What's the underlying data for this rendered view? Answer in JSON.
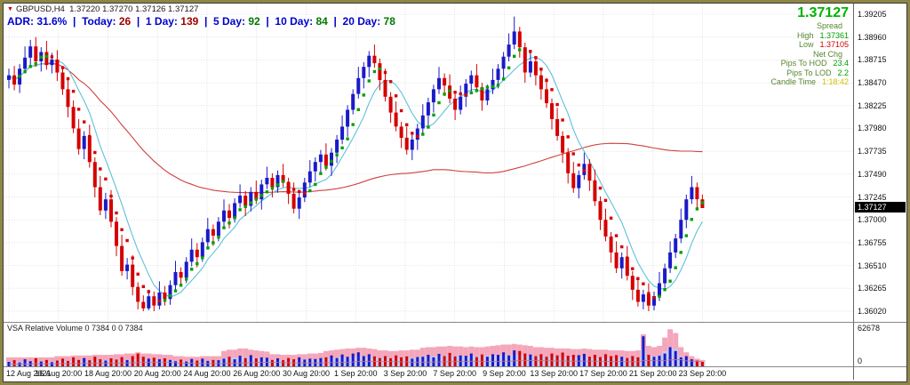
{
  "colors": {
    "frame": "#8e8645",
    "adr_blue": "#0000cc",
    "quote_label": "#57862e",
    "price_green": "#00b300"
  },
  "header": {
    "symbol_line": "GBPUSD,H4  1.37220 1.37270 1.37126 1.37127",
    "adr": {
      "lead_label": "ADR:",
      "lead_value": "31.6%",
      "separator": "|",
      "items": [
        {
          "label": "Today:",
          "value": "26",
          "value_color": "#a00000"
        },
        {
          "label": "1 Day:",
          "value": "139",
          "value_color": "#a00000"
        },
        {
          "label": "5 Day:",
          "value": "92",
          "value_color": "#007800"
        },
        {
          "label": "10 Day:",
          "value": "84",
          "value_color": "#007800"
        },
        {
          "label": "20 Day:",
          "value": "78",
          "value_color": "#007800"
        }
      ]
    }
  },
  "quote_panel": {
    "price": "1.37127",
    "rows": [
      {
        "label": "Spread",
        "value": "",
        "value_color": "#00a000"
      },
      {
        "label": "High",
        "value": "1.37361",
        "value_color": "#00a000"
      },
      {
        "label": "Low",
        "value": "1.37105",
        "value_color": "#d00000"
      },
      {
        "label": "Net Chg",
        "value": "",
        "value_color": "#00a000"
      },
      {
        "label": "Pips To HOD",
        "value": "23.4",
        "value_color": "#00a000"
      },
      {
        "label": "Pips To LOD",
        "value": "2.2",
        "value_color": "#00a000"
      },
      {
        "label": "Candle Time",
        "value": "1:18:42",
        "value_color": "#d6c200"
      }
    ]
  },
  "volume_pane": {
    "label": "VSA Relative Volume 0 7384 0 0 7384",
    "scale_top": "62678",
    "scale_bottom": "0"
  },
  "chart_data": {
    "type": "candlestick",
    "symbol": "GBPUSD",
    "timeframe": "H4",
    "y_range": [
      1.3602,
      1.39205
    ],
    "y_tick_labels": [
      "1.39205",
      "1.38960",
      "1.38715",
      "1.38470",
      "1.38225",
      "1.37980",
      "1.37735",
      "1.37490",
      "1.37245",
      "1.37000",
      "1.36755",
      "1.36510",
      "1.36265",
      "1.36020"
    ],
    "x_tick_labels": [
      "12 Aug 2021",
      "16 Aug 20:00",
      "18 Aug 20:00",
      "20 Aug 20:00",
      "24 Aug 20:00",
      "26 Aug 20:00",
      "30 Aug 20:00",
      "1 Sep 20:00",
      "3 Sep 20:00",
      "7 Sep 20:00",
      "9 Sep 20:00",
      "13 Sep 20:00",
      "17 Sep 20:00",
      "21 Sep 20:00",
      "23 Sep 20:00"
    ],
    "volume_scale_max": 62678,
    "overlays": {
      "dots_period": 5,
      "fast_period": 8,
      "slow_period": 80
    },
    "colors": {
      "up": "#1a1ac8",
      "down": "#d40000",
      "dots_up": "#00a000",
      "dots_down": "#d40000",
      "ma_fast": "#5ec1d8",
      "ma_slow": "#d04040",
      "band_pink": "#f4a7bb",
      "band_blue": "#c2cdf5",
      "vol_line": "#c87878"
    },
    "candles": [
      [
        1.385,
        1.3862,
        1.3841,
        1.3855
      ],
      [
        1.3855,
        1.3865,
        1.3839,
        1.3845
      ],
      [
        1.3845,
        1.3867,
        1.3836,
        1.3862
      ],
      [
        1.3862,
        1.3886,
        1.3857,
        1.3874
      ],
      [
        1.3874,
        1.3893,
        1.3865,
        1.3886
      ],
      [
        1.3886,
        1.3896,
        1.3864,
        1.387
      ],
      [
        1.387,
        1.3885,
        1.3859,
        1.388
      ],
      [
        1.388,
        1.3892,
        1.3861,
        1.3866
      ],
      [
        1.3866,
        1.3879,
        1.3857,
        1.3872
      ],
      [
        1.3872,
        1.3882,
        1.3849,
        1.3858
      ],
      [
        1.3858,
        1.3863,
        1.3834,
        1.384
      ],
      [
        1.384,
        1.3852,
        1.381,
        1.3821
      ],
      [
        1.3821,
        1.3828,
        1.3793,
        1.3798
      ],
      [
        1.3798,
        1.3808,
        1.377,
        1.3776
      ],
      [
        1.3776,
        1.3795,
        1.3765,
        1.379
      ],
      [
        1.379,
        1.3802,
        1.3756,
        1.3762
      ],
      [
        1.3762,
        1.3767,
        1.3724,
        1.3735
      ],
      [
        1.3735,
        1.3747,
        1.3705,
        1.371
      ],
      [
        1.371,
        1.3729,
        1.3701,
        1.3722
      ],
      [
        1.3722,
        1.3732,
        1.3692,
        1.3698
      ],
      [
        1.3698,
        1.3703,
        1.3661,
        1.3672
      ],
      [
        1.3672,
        1.3684,
        1.364,
        1.3645
      ],
      [
        1.3645,
        1.3659,
        1.3636,
        1.3652
      ],
      [
        1.3652,
        1.3662,
        1.3619,
        1.3628
      ],
      [
        1.3628,
        1.3633,
        1.3604,
        1.3612
      ],
      [
        1.3612,
        1.3619,
        1.3602,
        1.3605
      ],
      [
        1.3605,
        1.3625,
        1.3603,
        1.3618
      ],
      [
        1.3618,
        1.3623,
        1.3602,
        1.3608
      ],
      [
        1.3608,
        1.3634,
        1.3604,
        1.3622
      ],
      [
        1.3622,
        1.3629,
        1.3608,
        1.3615
      ],
      [
        1.3615,
        1.3635,
        1.3609,
        1.363
      ],
      [
        1.363,
        1.3656,
        1.3625,
        1.3644
      ],
      [
        1.3644,
        1.3649,
        1.3629,
        1.3638
      ],
      [
        1.3638,
        1.366,
        1.3632,
        1.3655
      ],
      [
        1.3655,
        1.368,
        1.365,
        1.3668
      ],
      [
        1.3668,
        1.3675,
        1.3649,
        1.366
      ],
      [
        1.366,
        1.3681,
        1.3655,
        1.3676
      ],
      [
        1.3676,
        1.3702,
        1.3671,
        1.369
      ],
      [
        1.369,
        1.3695,
        1.3672,
        1.3683
      ],
      [
        1.3683,
        1.3703,
        1.3677,
        1.3698
      ],
      [
        1.3698,
        1.3722,
        1.3693,
        1.371
      ],
      [
        1.371,
        1.3717,
        1.3691,
        1.3702
      ],
      [
        1.3702,
        1.3723,
        1.3697,
        1.3718
      ],
      [
        1.3718,
        1.3738,
        1.3713,
        1.3726
      ],
      [
        1.3726,
        1.3731,
        1.3704,
        1.3715
      ],
      [
        1.3715,
        1.3735,
        1.3709,
        1.373
      ],
      [
        1.373,
        1.3742,
        1.3717,
        1.3722
      ],
      [
        1.3722,
        1.3743,
        1.3711,
        1.3738
      ],
      [
        1.3738,
        1.3757,
        1.3733,
        1.3745
      ],
      [
        1.3745,
        1.375,
        1.3724,
        1.3735
      ],
      [
        1.3735,
        1.3753,
        1.3729,
        1.3748
      ],
      [
        1.3748,
        1.376,
        1.3735,
        1.374
      ],
      [
        1.374,
        1.3745,
        1.3717,
        1.3728
      ],
      [
        1.3728,
        1.374,
        1.3707,
        1.3712
      ],
      [
        1.3712,
        1.3729,
        1.3701,
        1.3724
      ],
      [
        1.3724,
        1.3745,
        1.3719,
        1.374
      ],
      [
        1.374,
        1.3764,
        1.3735,
        1.3752
      ],
      [
        1.3752,
        1.3767,
        1.3741,
        1.3762
      ],
      [
        1.3762,
        1.3775,
        1.3751,
        1.377
      ],
      [
        1.377,
        1.3782,
        1.3753,
        1.3758
      ],
      [
        1.3758,
        1.3777,
        1.3747,
        1.3772
      ],
      [
        1.3772,
        1.3791,
        1.3761,
        1.3786
      ],
      [
        1.3786,
        1.3812,
        1.3781,
        1.38
      ],
      [
        1.38,
        1.3823,
        1.3789,
        1.3818
      ],
      [
        1.3818,
        1.384,
        1.3813,
        1.3835
      ],
      [
        1.3835,
        1.3864,
        1.383,
        1.3852
      ],
      [
        1.3852,
        1.3869,
        1.3841,
        1.3864
      ],
      [
        1.3864,
        1.3881,
        1.3853,
        1.3876
      ],
      [
        1.3876,
        1.3888,
        1.3863,
        1.3868
      ],
      [
        1.3868,
        1.3873,
        1.3839,
        1.385
      ],
      [
        1.385,
        1.3862,
        1.3827,
        1.3832
      ],
      [
        1.3832,
        1.3837,
        1.3804,
        1.3815
      ],
      [
        1.3815,
        1.3827,
        1.3795,
        1.38
      ],
      [
        1.38,
        1.3805,
        1.3777,
        1.3788
      ],
      [
        1.3788,
        1.38,
        1.377,
        1.3775
      ],
      [
        1.3775,
        1.3791,
        1.3764,
        1.3786
      ],
      [
        1.3786,
        1.3803,
        1.3775,
        1.3798
      ],
      [
        1.3798,
        1.3824,
        1.3793,
        1.3812
      ],
      [
        1.3812,
        1.3831,
        1.3801,
        1.3826
      ],
      [
        1.3826,
        1.3845,
        1.3815,
        1.384
      ],
      [
        1.384,
        1.3864,
        1.3835,
        1.3852
      ],
      [
        1.3852,
        1.3857,
        1.3833,
        1.3844
      ],
      [
        1.3844,
        1.3856,
        1.3825,
        1.383
      ],
      [
        1.383,
        1.3835,
        1.3807,
        1.3818
      ],
      [
        1.3818,
        1.3844,
        1.3813,
        1.3832
      ],
      [
        1.3832,
        1.3851,
        1.3821,
        1.3846
      ],
      [
        1.3846,
        1.386,
        1.3835,
        1.3855
      ],
      [
        1.3855,
        1.3867,
        1.3837,
        1.3842
      ],
      [
        1.3842,
        1.3847,
        1.3817,
        1.3828
      ],
      [
        1.3828,
        1.3845,
        1.3823,
        1.384
      ],
      [
        1.384,
        1.3862,
        1.3835,
        1.385
      ],
      [
        1.385,
        1.3867,
        1.3841,
        1.3862
      ],
      [
        1.3862,
        1.388,
        1.3851,
        1.3875
      ],
      [
        1.3875,
        1.39,
        1.387,
        1.3888
      ],
      [
        1.3888,
        1.3918,
        1.3883,
        1.3902
      ],
      [
        1.3902,
        1.3907,
        1.3874,
        1.3885
      ],
      [
        1.3885,
        1.389,
        1.3847,
        1.3858
      ],
      [
        1.3858,
        1.3882,
        1.3853,
        1.387
      ],
      [
        1.387,
        1.3875,
        1.3844,
        1.3855
      ],
      [
        1.3855,
        1.386,
        1.3829,
        1.384
      ],
      [
        1.384,
        1.3852,
        1.382,
        1.3825
      ],
      [
        1.3825,
        1.383,
        1.3797,
        1.3808
      ],
      [
        1.3808,
        1.382,
        1.3785,
        1.379
      ],
      [
        1.379,
        1.3795,
        1.3761,
        1.3772
      ],
      [
        1.3772,
        1.3777,
        1.3739,
        1.375
      ],
      [
        1.375,
        1.3762,
        1.3729,
        1.3734
      ],
      [
        1.3734,
        1.3753,
        1.3723,
        1.3748
      ],
      [
        1.3748,
        1.3772,
        1.3743,
        1.376
      ],
      [
        1.376,
        1.3765,
        1.3731,
        1.3742
      ],
      [
        1.3742,
        1.3754,
        1.3715,
        1.372
      ],
      [
        1.372,
        1.3725,
        1.3689,
        1.37
      ],
      [
        1.37,
        1.3712,
        1.3677,
        1.3682
      ],
      [
        1.3682,
        1.3687,
        1.3654,
        1.3665
      ],
      [
        1.3665,
        1.3677,
        1.3643,
        1.3648
      ],
      [
        1.3648,
        1.3665,
        1.3637,
        1.366
      ],
      [
        1.366,
        1.3672,
        1.3635,
        1.364
      ],
      [
        1.364,
        1.3645,
        1.3614,
        1.3625
      ],
      [
        1.3625,
        1.3637,
        1.3607,
        1.3612
      ],
      [
        1.3612,
        1.3625,
        1.3604,
        1.362
      ],
      [
        1.362,
        1.3632,
        1.3602,
        1.3608
      ],
      [
        1.3608,
        1.3623,
        1.3603,
        1.3618
      ],
      [
        1.3618,
        1.3644,
        1.3613,
        1.3632
      ],
      [
        1.3632,
        1.3653,
        1.3627,
        1.3648
      ],
      [
        1.3648,
        1.3677,
        1.3643,
        1.3665
      ],
      [
        1.3665,
        1.3685,
        1.3659,
        1.368
      ],
      [
        1.368,
        1.3712,
        1.3675,
        1.37
      ],
      [
        1.37,
        1.3727,
        1.3691,
        1.3722
      ],
      [
        1.3722,
        1.3747,
        1.3717,
        1.3735
      ],
      [
        1.3735,
        1.374,
        1.371,
        1.3722
      ],
      [
        1.3722,
        1.3727,
        1.37126,
        1.37127
      ]
    ],
    "volumes": [
      7000,
      9500,
      6000,
      11000,
      8000,
      12500,
      7500,
      10000,
      6500,
      9000,
      12000,
      8500,
      14000,
      10000,
      13000,
      9500,
      15000,
      11000,
      9000,
      12500,
      10500,
      14500,
      9800,
      16000,
      20000,
      15000,
      12000,
      13500,
      11000,
      12500,
      10000,
      8000,
      10500,
      7500,
      11500,
      9000,
      12000,
      8500,
      10000,
      9500,
      12000,
      15000,
      11000,
      16500,
      13000,
      17500,
      12500,
      14000,
      13500,
      10000,
      12500,
      9500,
      13000,
      11000,
      14000,
      10500,
      12000,
      11500,
      13000,
      14000,
      17000,
      13000,
      18500,
      15000,
      20000,
      22000,
      16000,
      19000,
      15500,
      13000,
      16000,
      12500,
      17000,
      14000,
      15500,
      12000,
      14500,
      15000,
      18000,
      14000,
      19500,
      16000,
      21000,
      15500,
      17000,
      16500,
      20000,
      14500,
      18500,
      15000,
      19000,
      18000,
      22000,
      17000,
      25000,
      24000,
      20000,
      18500,
      16000,
      19000,
      15000,
      20000,
      17000,
      21500,
      16500,
      18000,
      17500,
      19500,
      15000,
      18000,
      14500,
      19000,
      16000,
      17500,
      15000,
      13000,
      16000,
      14000,
      47000,
      18000,
      15000,
      16500,
      20000,
      30000,
      24000,
      14000,
      16000,
      11000,
      9000,
      7000
    ],
    "volume_bands": [
      14000,
      14000,
      14000,
      14000,
      14000,
      14000,
      14000,
      14000,
      14000,
      16000,
      16000,
      16000,
      17000,
      17000,
      17000,
      17000,
      18000,
      18000,
      18000,
      18000,
      19000,
      19000,
      20000,
      20000,
      22000,
      20000,
      20000,
      19000,
      19000,
      18000,
      18000,
      16000,
      16000,
      15000,
      15000,
      15000,
      16000,
      16000,
      16000,
      16000,
      24000,
      26000,
      26000,
      28000,
      28000,
      26000,
      25000,
      24000,
      23000,
      19000,
      19000,
      18000,
      18000,
      18000,
      19000,
      19000,
      20000,
      20000,
      21000,
      24000,
      25000,
      26000,
      27000,
      28000,
      28000,
      29000,
      29000,
      28000,
      27000,
      25000,
      25000,
      24000,
      24000,
      25000,
      25000,
      26000,
      26000,
      29000,
      30000,
      30000,
      31000,
      31000,
      32000,
      31000,
      31000,
      30000,
      31000,
      30000,
      30000,
      31000,
      32000,
      33000,
      34000,
      34000,
      35000,
      34000,
      33000,
      32000,
      30000,
      30000,
      29000,
      29000,
      28000,
      28000,
      28000,
      27000,
      27000,
      28000,
      27000,
      26000,
      26000,
      26000,
      25000,
      25000,
      25000,
      24000,
      24000,
      25000,
      50000,
      32000,
      30000,
      32000,
      45000,
      58000,
      52000,
      30000,
      22000,
      16000,
      12000,
      10000
    ]
  }
}
